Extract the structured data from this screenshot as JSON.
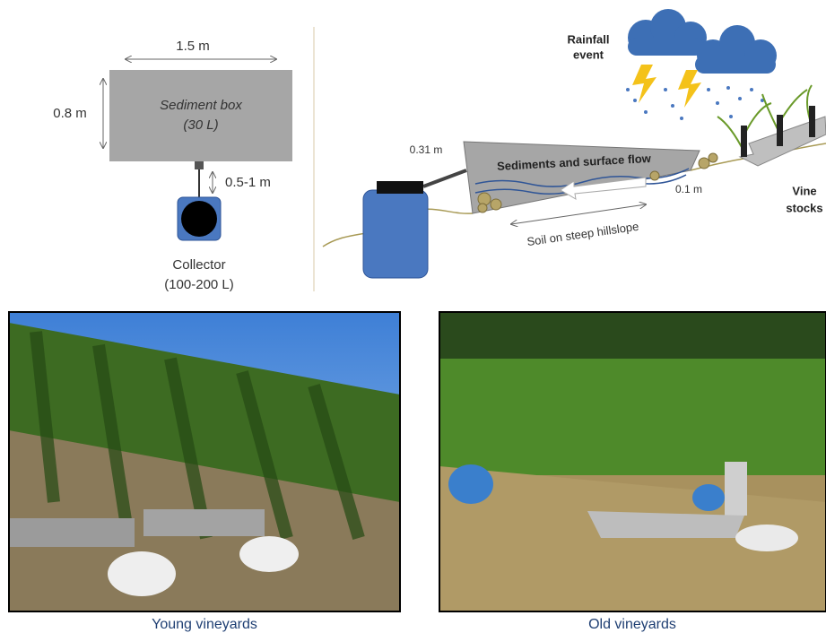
{
  "plan": {
    "width_label": "1.5 m",
    "height_label": "0.8 m",
    "box_title": "Sediment box",
    "box_volume": "(30 L)",
    "distance_label": "0.5-1 m",
    "collector_title": "Collector",
    "collector_volume": "(100-200 L)"
  },
  "profile": {
    "rain_line1": "Rainfall",
    "rain_line2": "event",
    "inlet_height": "0.31 m",
    "flow_label": "Sediments and surface flow",
    "outlet_height": "0.1 m",
    "soil_label": "Soil on steep hillslope",
    "vine_line1": "Vine",
    "vine_line2": "stocks"
  },
  "photos": {
    "left_caption": "Young vineyards",
    "right_caption": "Old vineyards"
  }
}
